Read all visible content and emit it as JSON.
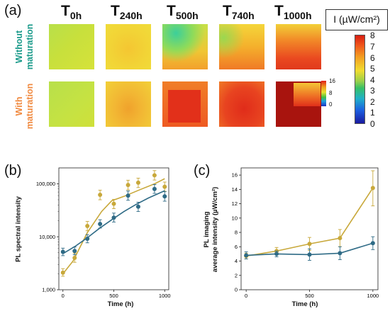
{
  "panel_labels": [
    "(a)",
    "(b)",
    "(c)"
  ],
  "time_labels": [
    {
      "T": "T",
      "sub": "0h"
    },
    {
      "T": "T",
      "sub": "240h"
    },
    {
      "T": "T",
      "sub": "500h"
    },
    {
      "T": "T",
      "sub": "740h"
    },
    {
      "T": "T",
      "sub": "1000h"
    }
  ],
  "row_labels": [
    {
      "lines": [
        "Without",
        "maturation"
      ],
      "color": "#1a9a8a"
    },
    {
      "lines": [
        "With",
        "maturation"
      ],
      "color": "#f08a40"
    }
  ],
  "colorbar_main": {
    "title": "I (µW/cm²)",
    "ticks": [
      "8",
      "7",
      "6",
      "5",
      "4",
      "3",
      "2",
      "1",
      "0"
    ]
  },
  "colorbar_inset": {
    "ticks": [
      "16",
      "8",
      "0"
    ]
  },
  "colors": {
    "gold": "#c8a83a",
    "teal": "#2f6b86"
  },
  "chart_data": [
    {
      "type": "line",
      "ylabel": "PL spectral intensity",
      "xlabel": "Time (h)",
      "yscale": "log",
      "xlim": [
        -40,
        1040
      ],
      "ylim": [
        1000,
        200000
      ],
      "xticks": [
        0,
        500,
        1000
      ],
      "yticks": [
        {
          "v": 1000,
          "label": "1,000"
        },
        {
          "v": 10000,
          "label": "10,000"
        },
        {
          "v": 100000,
          "label": "100,000"
        }
      ],
      "series": [
        {
          "color": "#c8a83a",
          "points": [
            {
              "x": 0,
              "y": 2100,
              "lo": 1800,
              "hi": 2500
            },
            {
              "x": 115,
              "y": 4000,
              "lo": 3300,
              "hi": 4900
            },
            {
              "x": 240,
              "y": 16000,
              "lo": 13000,
              "hi": 19500
            },
            {
              "x": 365,
              "y": 62000,
              "lo": 50000,
              "hi": 76000
            },
            {
              "x": 500,
              "y": 42000,
              "lo": 34000,
              "hi": 51000
            },
            {
              "x": 640,
              "y": 95000,
              "lo": 77000,
              "hi": 117000
            },
            {
              "x": 740,
              "y": 105000,
              "lo": 85000,
              "hi": 128000
            },
            {
              "x": 900,
              "y": 145000,
              "lo": 118000,
              "hi": 178000
            },
            {
              "x": 1000,
              "y": 88000,
              "lo": 72000,
              "hi": 108000
            }
          ],
          "fit": [
            [
              0,
              2000
            ],
            [
              100,
              3500
            ],
            [
              240,
              12000
            ],
            [
              380,
              30000
            ],
            [
              480,
              48000
            ],
            [
              600,
              58000
            ],
            [
              760,
              78000
            ],
            [
              900,
              100000
            ],
            [
              1000,
              125000
            ]
          ]
        },
        {
          "color": "#2f6b86",
          "points": [
            {
              "x": 0,
              "y": 5200,
              "lo": 4400,
              "hi": 6100
            },
            {
              "x": 115,
              "y": 5400,
              "lo": 4600,
              "hi": 6400
            },
            {
              "x": 240,
              "y": 9200,
              "lo": 7700,
              "hi": 11000
            },
            {
              "x": 365,
              "y": 17500,
              "lo": 14600,
              "hi": 21000
            },
            {
              "x": 500,
              "y": 23000,
              "lo": 19000,
              "hi": 28000
            },
            {
              "x": 640,
              "y": 60000,
              "lo": 49000,
              "hi": 73000
            },
            {
              "x": 740,
              "y": 37000,
              "lo": 30000,
              "hi": 45000
            },
            {
              "x": 900,
              "y": 80000,
              "lo": 66000,
              "hi": 97000
            },
            {
              "x": 1000,
              "y": 58000,
              "lo": 47000,
              "hi": 71000
            }
          ],
          "fit": [
            [
              0,
              4800
            ],
            [
              120,
              6600
            ],
            [
              240,
              9600
            ],
            [
              360,
              14500
            ],
            [
              480,
              21000
            ],
            [
              600,
              30000
            ],
            [
              720,
              41000
            ],
            [
              840,
              54000
            ],
            [
              1000,
              74000
            ]
          ]
        }
      ]
    },
    {
      "type": "line",
      "ylabel_lines": [
        "PL imaging",
        "average intensity (µW/cm²)"
      ],
      "xlabel": "Time (h)",
      "xlim": [
        -40,
        1040
      ],
      "ylim": [
        0,
        17
      ],
      "xticks": [
        0,
        500,
        1000
      ],
      "yticks": [
        0,
        2,
        4,
        6,
        8,
        10,
        12,
        14,
        16
      ],
      "series": [
        {
          "color": "#c8a83a",
          "points": [
            {
              "x": 0,
              "y": 4.7,
              "lo": 4.3,
              "hi": 5.1
            },
            {
              "x": 240,
              "y": 5.4,
              "lo": 4.9,
              "hi": 5.9
            },
            {
              "x": 500,
              "y": 6.4,
              "lo": 5.5,
              "hi": 7.3
            },
            {
              "x": 740,
              "y": 7.2,
              "lo": 6.0,
              "hi": 8.4
            },
            {
              "x": 1000,
              "y": 14.2,
              "lo": 11.7,
              "hi": 16.6
            }
          ]
        },
        {
          "color": "#2f6b86",
          "points": [
            {
              "x": 0,
              "y": 4.8,
              "lo": 4.3,
              "hi": 5.3
            },
            {
              "x": 240,
              "y": 5.0,
              "lo": 4.6,
              "hi": 5.4
            },
            {
              "x": 500,
              "y": 4.9,
              "lo": 4.1,
              "hi": 5.7
            },
            {
              "x": 740,
              "y": 5.1,
              "lo": 4.2,
              "hi": 6.0
            },
            {
              "x": 1000,
              "y": 6.5,
              "lo": 5.6,
              "hi": 7.4
            }
          ]
        }
      ]
    }
  ]
}
